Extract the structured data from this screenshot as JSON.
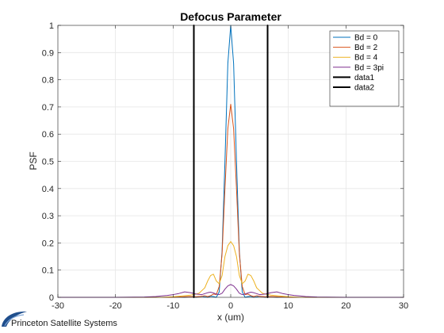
{
  "chart_data": {
    "type": "line",
    "title": "Defocus Parameter",
    "xlabel": "x (um)",
    "ylabel": "PSF",
    "xlim": [
      -30,
      30
    ],
    "ylim": [
      0,
      1
    ],
    "xticks": [
      -30,
      -20,
      -10,
      0,
      10,
      20,
      30
    ],
    "yticks": [
      0,
      0.1,
      0.2,
      0.3,
      0.4,
      0.5,
      0.6,
      0.7,
      0.8,
      0.9,
      1
    ],
    "grid": true,
    "legend_position": "top-right",
    "series": [
      {
        "name": "Bd = 0",
        "color": "#0072BD",
        "x": [
          -30,
          -20,
          -15,
          -12,
          -10,
          -9,
          -8,
          -7.5,
          -7,
          -6.5,
          -6,
          -5.5,
          -5,
          -4.5,
          -4,
          -3.5,
          -3,
          -2.5,
          -2,
          -1.5,
          -1,
          -0.5,
          0,
          0.5,
          1,
          1.5,
          2,
          2.5,
          3,
          3.5,
          4,
          4.5,
          5,
          5.5,
          6,
          6.5,
          7,
          7.5,
          8,
          9,
          10,
          12,
          15,
          20,
          30
        ],
        "y": [
          0,
          0,
          0,
          0,
          0,
          0.001,
          0,
          0.001,
          0.002,
          0.001,
          0,
          0.002,
          0.004,
          0.002,
          0,
          0.004,
          0.003,
          0,
          0.02,
          0.17,
          0.5,
          0.86,
          1,
          0.86,
          0.5,
          0.17,
          0.02,
          0,
          0.003,
          0.004,
          0,
          0.002,
          0.004,
          0.002,
          0,
          0.001,
          0.002,
          0.001,
          0,
          0.001,
          0,
          0,
          0,
          0,
          0
        ]
      },
      {
        "name": "Bd = 2",
        "color": "#D95319",
        "x": [
          -30,
          -20,
          -15,
          -12,
          -10,
          -9,
          -8,
          -7,
          -6,
          -5,
          -4.5,
          -4,
          -3.5,
          -3,
          -2.5,
          -2,
          -1.5,
          -1,
          -0.5,
          0,
          0.5,
          1,
          1.5,
          2,
          2.5,
          3,
          3.5,
          4,
          4.5,
          5,
          6,
          7,
          8,
          9,
          10,
          12,
          15,
          20,
          30
        ],
        "y": [
          0,
          0,
          0,
          0,
          0,
          0.001,
          0.002,
          0.003,
          0.002,
          0.004,
          0.006,
          0.003,
          0.006,
          0.012,
          0.01,
          0.04,
          0.16,
          0.4,
          0.62,
          0.71,
          0.62,
          0.4,
          0.16,
          0.04,
          0.01,
          0.012,
          0.006,
          0.003,
          0.006,
          0.004,
          0.002,
          0.003,
          0.002,
          0.001,
          0,
          0,
          0,
          0,
          0
        ]
      },
      {
        "name": "Bd = 4",
        "color": "#EDB120",
        "x": [
          -30,
          -20,
          -15,
          -12,
          -10,
          -9,
          -8,
          -7,
          -6.5,
          -6,
          -5.5,
          -5,
          -4.5,
          -4,
          -3.5,
          -3,
          -2.5,
          -2,
          -1.5,
          -1,
          -0.5,
          0,
          0.5,
          1,
          1.5,
          2,
          2.5,
          3,
          3.5,
          4,
          4.5,
          5,
          5.5,
          6,
          6.5,
          7,
          8,
          9,
          10,
          12,
          15,
          20,
          30
        ],
        "y": [
          0,
          0,
          0,
          0,
          0.002,
          0.004,
          0.006,
          0.008,
          0.01,
          0.012,
          0.015,
          0.025,
          0.035,
          0.06,
          0.08,
          0.085,
          0.06,
          0.05,
          0.08,
          0.15,
          0.19,
          0.205,
          0.19,
          0.15,
          0.08,
          0.05,
          0.06,
          0.085,
          0.08,
          0.06,
          0.035,
          0.025,
          0.015,
          0.012,
          0.01,
          0.008,
          0.006,
          0.004,
          0.002,
          0,
          0,
          0,
          0
        ]
      },
      {
        "name": "Bd = 3pi",
        "color": "#7E2F8E",
        "x": [
          -30,
          -20,
          -15,
          -13,
          -12,
          -11,
          -10,
          -9,
          -8,
          -7,
          -6,
          -5,
          -4,
          -3.5,
          -3,
          -2.5,
          -2,
          -1.5,
          -1,
          -0.5,
          0,
          0.5,
          1,
          1.5,
          2,
          2.5,
          3,
          3.5,
          4,
          5,
          6,
          7,
          8,
          9,
          10,
          11,
          12,
          13,
          15,
          20,
          30
        ],
        "y": [
          0,
          0,
          0.001,
          0.003,
          0.005,
          0.007,
          0.01,
          0.014,
          0.02,
          0.017,
          0.012,
          0.01,
          0.017,
          0.019,
          0.016,
          0.012,
          0.01,
          0.015,
          0.03,
          0.042,
          0.047,
          0.042,
          0.03,
          0.015,
          0.01,
          0.012,
          0.016,
          0.019,
          0.017,
          0.01,
          0.012,
          0.017,
          0.02,
          0.014,
          0.01,
          0.007,
          0.005,
          0.003,
          0.001,
          0,
          0
        ]
      },
      {
        "name": "data1",
        "color": "#000000",
        "x": [
          -6.4,
          -6.4
        ],
        "y": [
          0,
          1
        ]
      },
      {
        "name": "data2",
        "color": "#000000",
        "x": [
          6.4,
          6.4
        ],
        "y": [
          0,
          1
        ]
      }
    ]
  },
  "footer": {
    "company": "Princeton Satellite Systems",
    "logo": "princeton-satellite-systems-swoosh"
  }
}
